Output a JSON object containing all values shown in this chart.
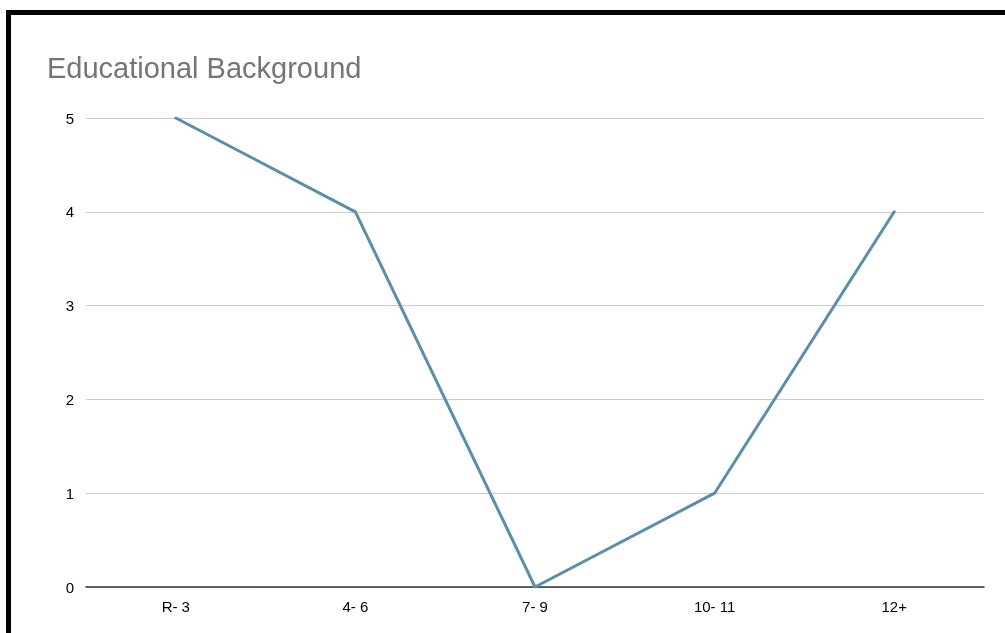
{
  "chart_data": {
    "type": "line",
    "title": "Educational Background",
    "categories": [
      "R- 3",
      "4- 6",
      "7- 9",
      "10- 11",
      "12+"
    ],
    "series": [
      {
        "color": "#5a8fa8",
        "values": [
          5,
          4,
          0,
          1,
          4
        ]
      }
    ],
    "ylim": [
      0,
      5
    ],
    "yticks": [
      0,
      1,
      2,
      3,
      4,
      5
    ],
    "grid": "y",
    "marker": "none"
  }
}
